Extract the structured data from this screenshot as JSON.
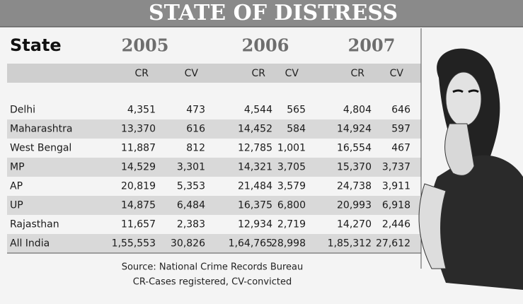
{
  "header": {
    "title": "STATE OF DISTRESS"
  },
  "table": {
    "columns": [
      "State",
      "2005",
      "2006",
      "2007"
    ],
    "subcolumns": [
      "CR",
      "CV",
      "CR",
      "CV",
      "CR",
      "CV"
    ],
    "rows": [
      [
        "Delhi",
        "4,351",
        "473",
        "4,544",
        "565",
        "4,804",
        "646"
      ],
      [
        "Maharashtra",
        "13,370",
        "616",
        "14,452",
        "584",
        "14,924",
        "597"
      ],
      [
        "West Bengal",
        "11,887",
        "812",
        "12,785",
        "1,001",
        "16,554",
        "467"
      ],
      [
        "MP",
        "14,529",
        "3,301",
        "14,321",
        "3,705",
        "15,370",
        "3,737"
      ],
      [
        "AP",
        "20,819",
        "5,353",
        "21,484",
        "3,579",
        "24,738",
        "3,911"
      ],
      [
        "UP",
        "14,875",
        "6,484",
        "16,375",
        "6,800",
        "20,993",
        "6,918"
      ],
      [
        "Rajasthan",
        "11,657",
        "2,383",
        "12,934",
        "2,719",
        "14,270",
        "2,446"
      ],
      [
        "All India",
        "1,55,553",
        "30,826",
        "1,64,765",
        "28,998",
        "1,85,312",
        "27,612"
      ]
    ]
  },
  "footer": {
    "source": "Source: National Crime Records Bureau",
    "note": "CR-Cases registered, CV-convicted"
  }
}
